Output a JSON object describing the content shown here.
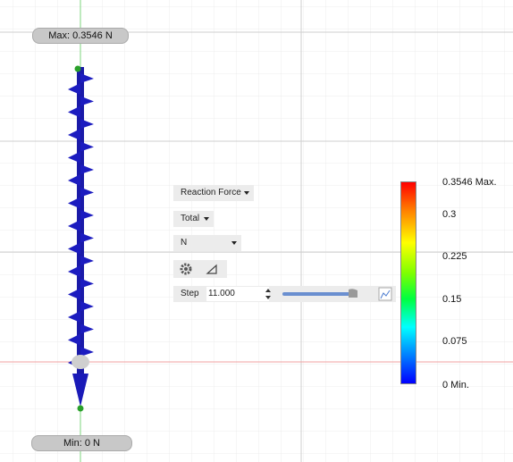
{
  "viewport": {
    "max_label": "Max: 0.3546 N",
    "min_label": "Min: 0 N"
  },
  "panel": {
    "result_type": "Reaction Force",
    "component": "Total",
    "unit": "N",
    "step_label": "Step",
    "step_value": "11.000"
  },
  "legend": {
    "labels": [
      "0.3546 Max.",
      "0.3",
      "0.225",
      "0.15",
      "0.075",
      "0 Min."
    ]
  }
}
